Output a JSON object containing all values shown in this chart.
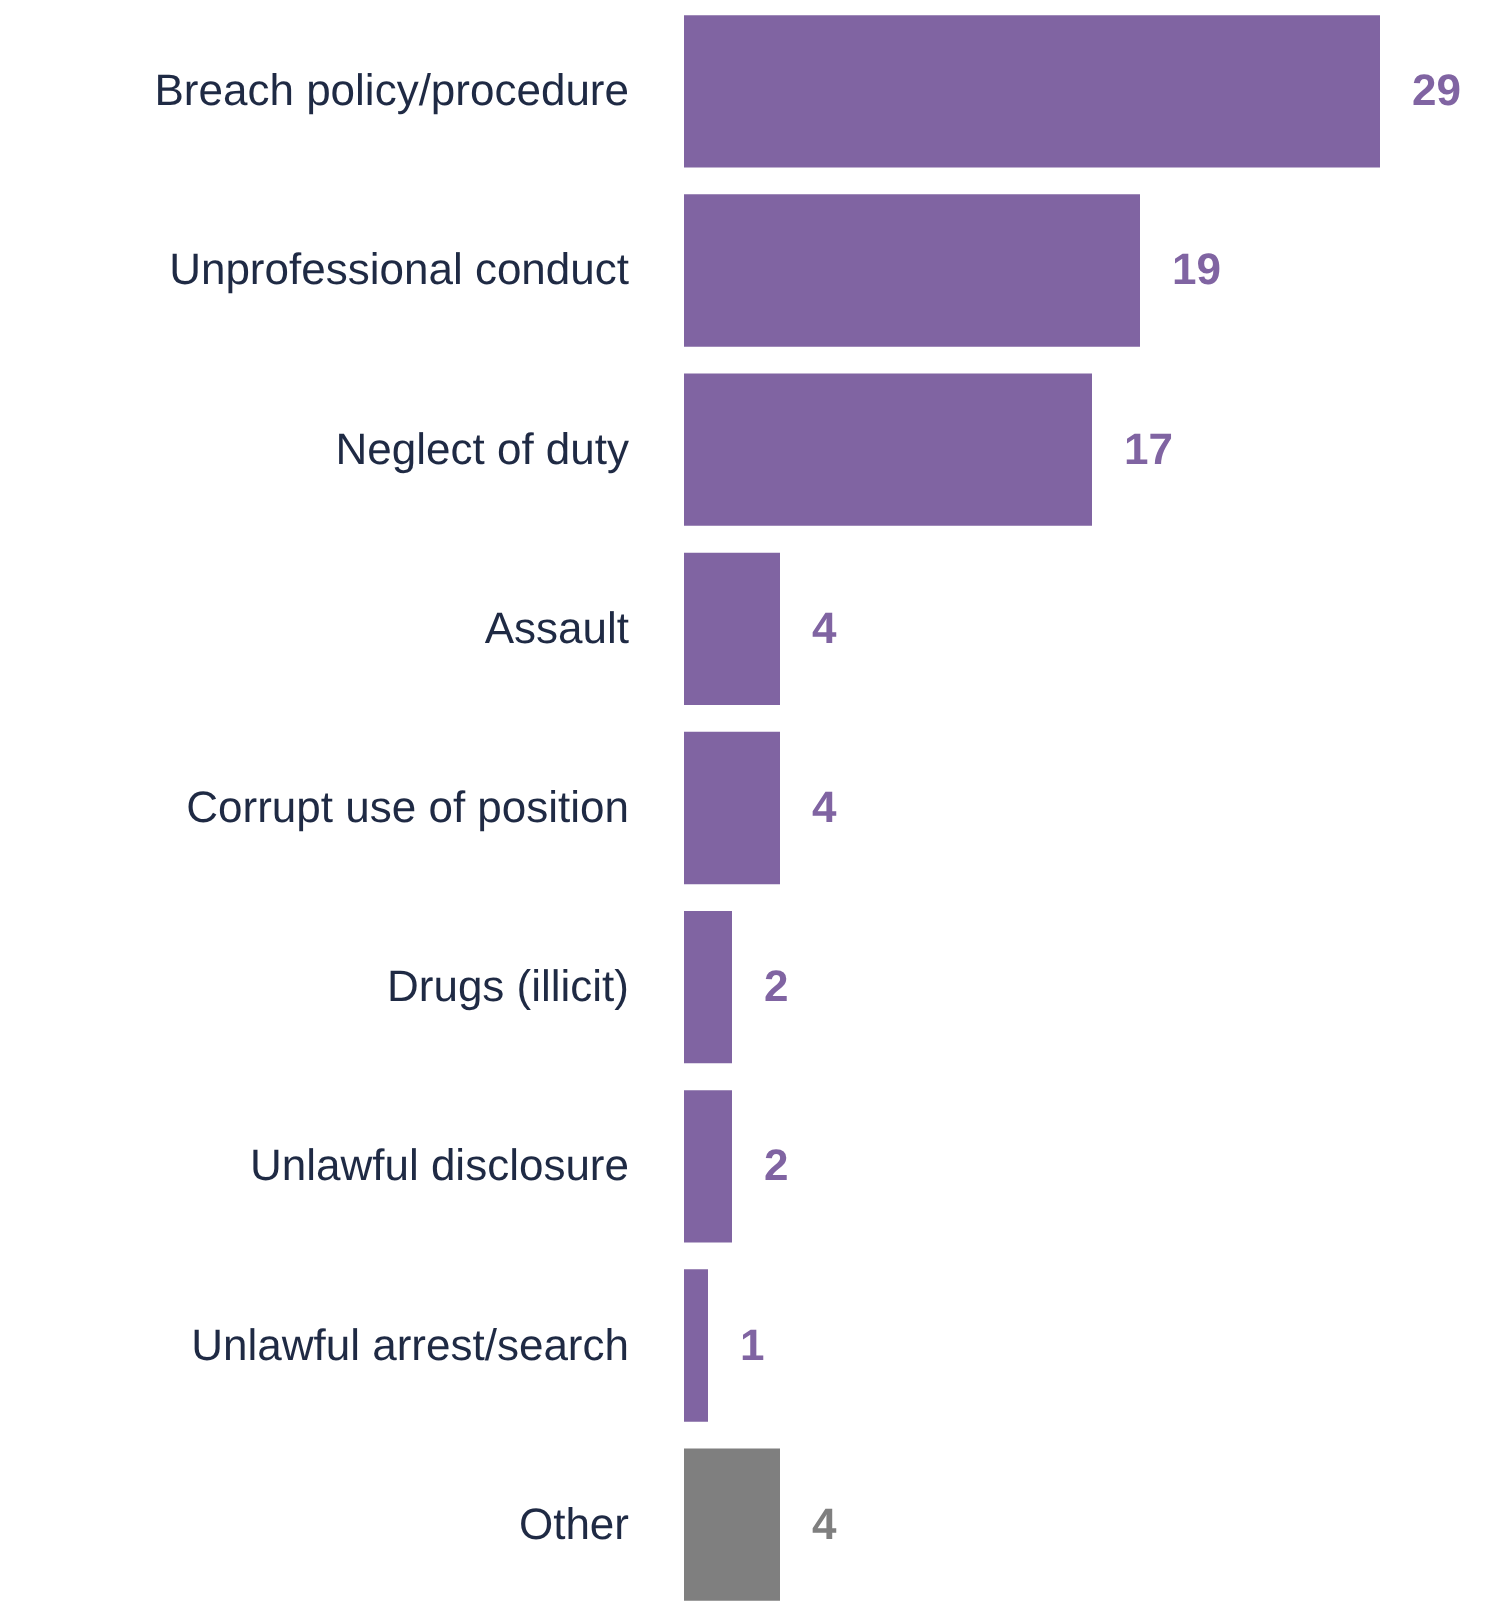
{
  "chart_data": {
    "type": "bar",
    "orientation": "horizontal",
    "data_labels": true,
    "grid": false,
    "categories": [
      "Breach policy/procedure",
      "Unprofessional conduct",
      "Neglect of duty",
      "Assault",
      "Corrupt use of position",
      "Drugs (illicit)",
      "Unlawful disclosure",
      "Unlawful arrest/search",
      "Other"
    ],
    "values": [
      29,
      19,
      17,
      4,
      4,
      2,
      2,
      1,
      4
    ],
    "colors": [
      "#8064a2",
      "#8064a2",
      "#8064a2",
      "#8064a2",
      "#8064a2",
      "#8064a2",
      "#8064a2",
      "#8064a2",
      "#7f7f7f"
    ]
  }
}
